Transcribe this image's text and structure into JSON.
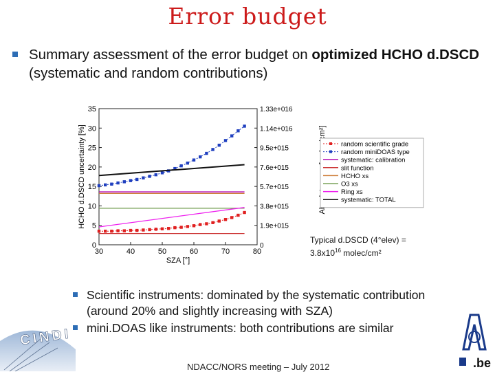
{
  "slide": {
    "title": "Error budget",
    "bullet_main_prefix": "Summary assessment of the error budget on ",
    "bullet_main_bold": "optimized HCHO d.DSCD",
    "bullet_main_suffix": " (systematic and random contributions)",
    "note_line1": "Typical d.DSCD (4°elev) =",
    "note_line2_prefix": "3.8x10",
    "note_line2_sup": "16",
    "note_line2_suffix": " molec/cm²",
    "sub_bullets": [
      "Scientific instruments: dominated by the systematic contribution (around 20% and slightly increasing with SZA)",
      "mini.DOAS like instruments: both contributions are similar"
    ],
    "footer": "NDACC/NORS meeting – July 2012",
    "logo_left_text": "CINDI",
    "logo_right_text": ".be"
  },
  "chart_data": {
    "type": "line",
    "xlabel": "SZA [°]",
    "ylabel": "HCHO d.DSCD uncertainty [%]",
    "ylabel_right": "Absolute error [molec/cm²]",
    "xlim": [
      30,
      80
    ],
    "ylim": [
      0,
      35
    ],
    "x_ticks": [
      30,
      40,
      50,
      60,
      70,
      80
    ],
    "y_ticks": [
      0,
      5,
      10,
      15,
      20,
      25,
      30,
      35
    ],
    "right_ticks": [
      "0",
      "1.9e+015",
      "3.8e+015",
      "5.7e+015",
      "7.6e+015",
      "9.5e+015",
      "1.14e+016",
      "1.33e+016"
    ],
    "legend_position": "right",
    "series": [
      {
        "name": "random scientific grade",
        "color": "#e02020",
        "style": "square-dotted",
        "x": [
          30,
          32,
          34,
          36,
          38,
          40,
          42,
          44,
          46,
          48,
          50,
          52,
          54,
          56,
          58,
          60,
          62,
          64,
          66,
          68,
          70,
          72,
          74,
          76
        ],
        "y": [
          3.5,
          3.5,
          3.5,
          3.6,
          3.6,
          3.7,
          3.7,
          3.8,
          3.9,
          4.0,
          4.1,
          4.2,
          4.4,
          4.5,
          4.7,
          4.9,
          5.2,
          5.4,
          5.7,
          6.1,
          6.5,
          7.0,
          7.6,
          8.3
        ]
      },
      {
        "name": "random miniDOAS type",
        "color": "#1f3fbf",
        "style": "square-dotted",
        "x": [
          30,
          32,
          34,
          36,
          38,
          40,
          42,
          44,
          46,
          48,
          50,
          52,
          54,
          56,
          58,
          60,
          62,
          64,
          66,
          68,
          70,
          72,
          74,
          76
        ],
        "y": [
          15.2,
          15.4,
          15.6,
          15.9,
          16.2,
          16.5,
          16.8,
          17.2,
          17.6,
          18.0,
          18.5,
          19.0,
          19.6,
          20.3,
          21.0,
          21.8,
          22.6,
          23.5,
          24.5,
          25.6,
          26.8,
          28.0,
          29.3,
          30.5
        ]
      },
      {
        "name": "systematic: calibration",
        "color": "#b000b0",
        "style": "line",
        "x": [
          30,
          76
        ],
        "y": [
          13.6,
          13.6
        ]
      },
      {
        "name": "slit function",
        "color": "#cc3333",
        "style": "line",
        "x": [
          30,
          76
        ],
        "y": [
          2.9,
          2.9
        ]
      },
      {
        "name": "HCHO xs",
        "color": "#cc7a33",
        "style": "line",
        "x": [
          30,
          76
        ],
        "y": [
          13.2,
          13.2
        ]
      },
      {
        "name": "O3 xs",
        "color": "#7aa35a",
        "style": "line",
        "x": [
          30,
          76
        ],
        "y": [
          9.4,
          9.4
        ]
      },
      {
        "name": "Ring xs",
        "color": "#ee22ee",
        "style": "line",
        "x": [
          30,
          76
        ],
        "y": [
          4.6,
          9.6
        ]
      },
      {
        "name": "systematic: TOTAL",
        "color": "#111111",
        "style": "line",
        "x": [
          30,
          76
        ],
        "y": [
          17.8,
          20.6
        ]
      }
    ]
  }
}
